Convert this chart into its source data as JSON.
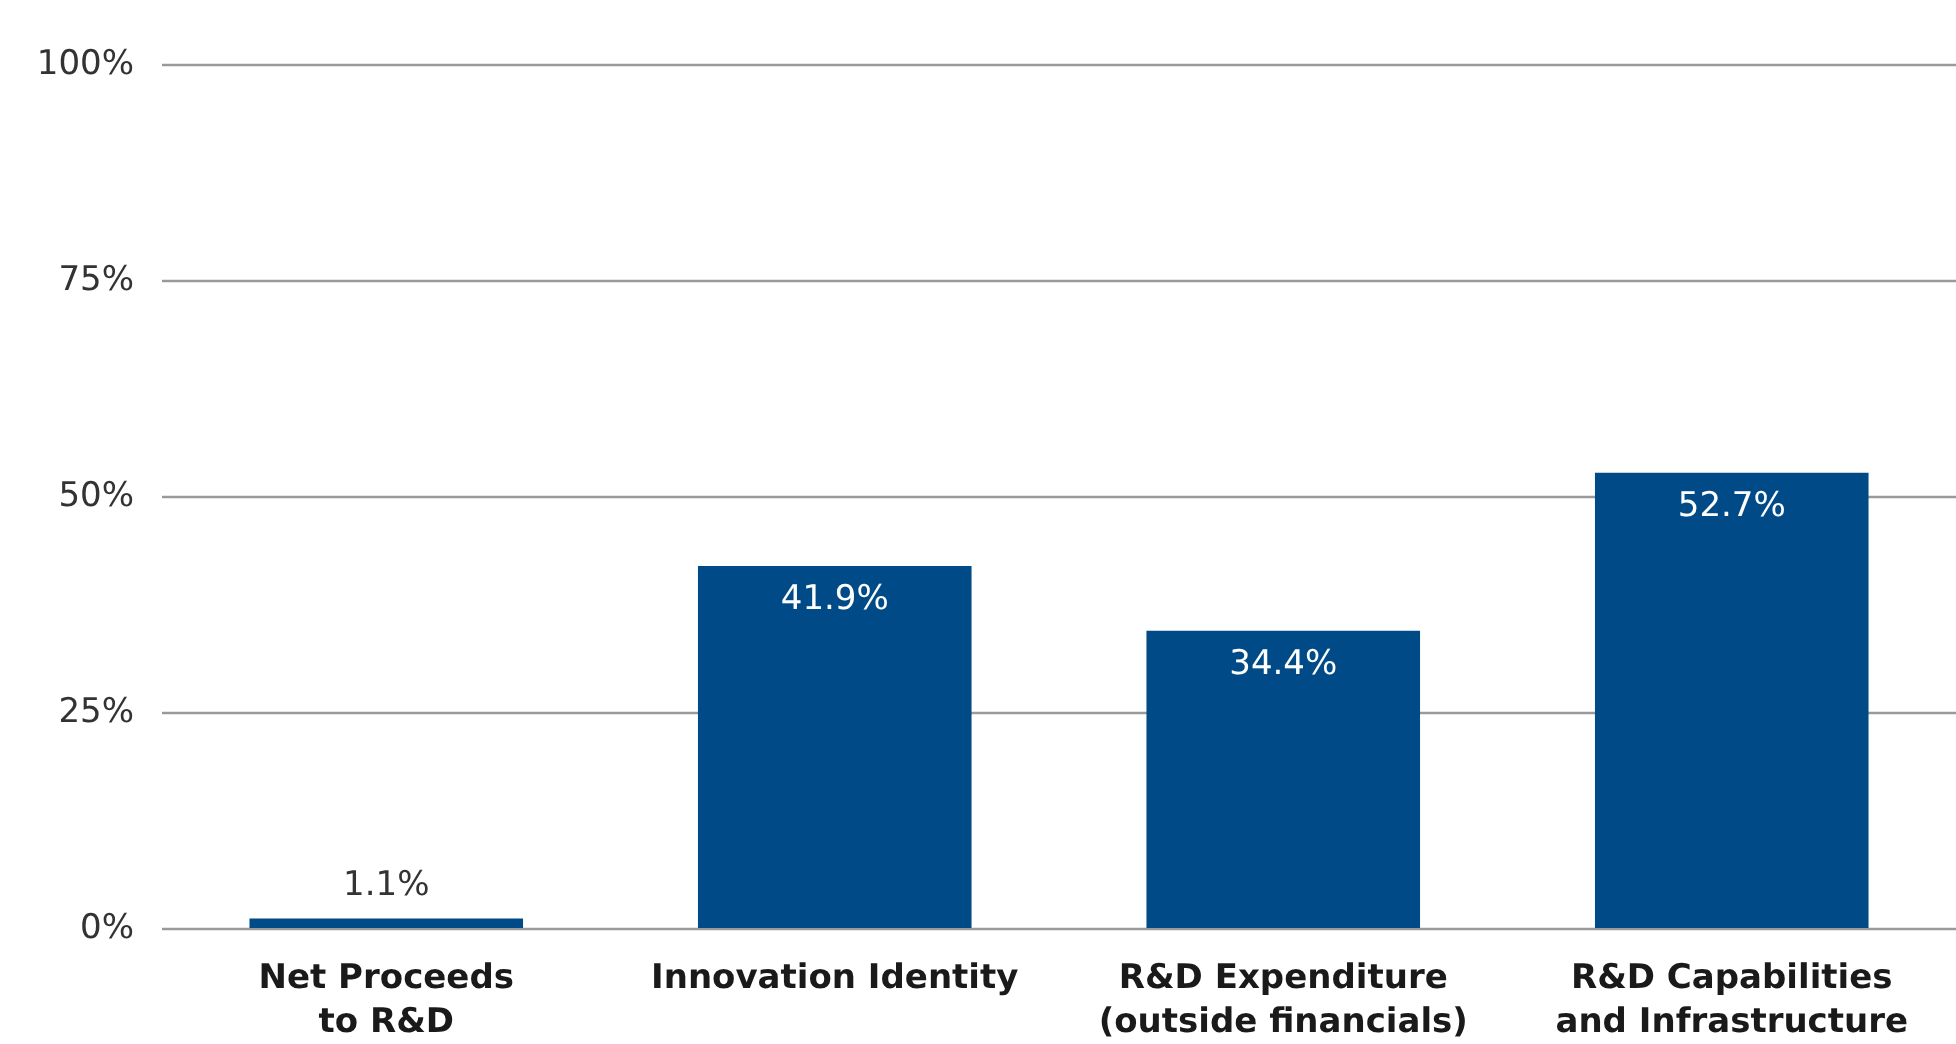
{
  "chart_data": {
    "type": "bar",
    "categories": [
      "Net Proceeds\nto R&D",
      "Innovation Identity",
      "R&D Expenditure\n(outside financials)",
      "R&D Capabilities\nand Infrastructure"
    ],
    "values": [
      1.1,
      41.9,
      34.4,
      52.7
    ],
    "color": "#004b87",
    "value_labels": [
      "1.1%",
      "41.9%",
      "34.4%",
      "52.7%"
    ],
    "ylim": [
      0,
      100
    ],
    "yticks": [
      {
        "value": 0,
        "label": "0%"
      },
      {
        "value": 25,
        "label": "25%"
      },
      {
        "value": 50,
        "label": "50%"
      },
      {
        "value": 75,
        "label": "75%"
      },
      {
        "value": 100,
        "label": "100%"
      }
    ],
    "grid": "y"
  }
}
